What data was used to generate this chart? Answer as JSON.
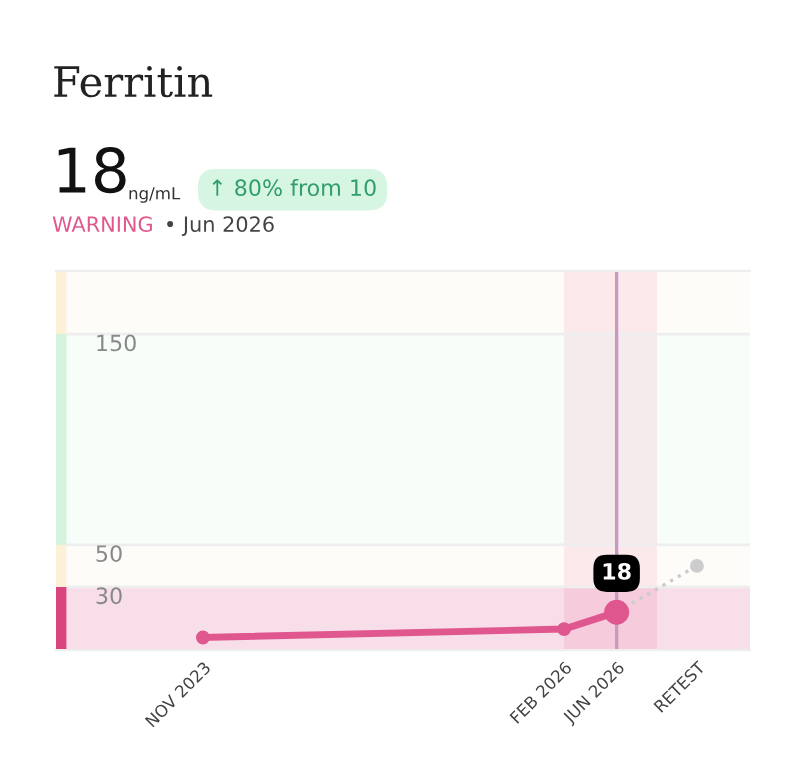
{
  "chart_data": {
    "type": "line",
    "title": "Ferritin",
    "annotations": [
      "18",
      "ng/mL",
      "↑ 80% from 10",
      "WARNING",
      "• Jun 2026"
    ],
    "x": [
      "2023-11",
      "2026-02",
      "2026-06"
    ],
    "series": [
      {
        "color": "#e0578f",
        "values": [
          6,
          10,
          18
        ],
        "value_labels": [
          null,
          null,
          "18"
        ],
        "marker": "circle",
        "line_style": "solid"
      },
      {
        "x": [
          "2026-06",
          "2026-12"
        ],
        "color": "#cccccc",
        "values": [
          18,
          40
        ],
        "marker": "circle",
        "line_style": "dotted"
      }
    ],
    "xlim": [
      "2022-12",
      "2027-04"
    ],
    "xticks": [
      {
        "value": "2023-11",
        "label": "NOV 2023"
      },
      {
        "value": "2026-02",
        "label": "FEB 2026"
      },
      {
        "value": "2026-06",
        "label": "JUN 2026"
      },
      {
        "value": "2026-12",
        "label": "RETEST"
      }
    ],
    "ylim": [
      0,
      180
    ],
    "yticks": [
      30,
      50,
      150
    ],
    "grid": "y",
    "legend": false,
    "ref_lines": [
      {
        "axis": "x",
        "value": "2026-06",
        "color": "#c79bc0"
      }
    ],
    "bands": [
      {
        "axis": "x",
        "from": "2026-02",
        "to": "2026-09",
        "color": "#fde8ef"
      },
      {
        "axis": "y",
        "from": 0,
        "to": 30,
        "color": "#d9467f"
      },
      {
        "axis": "y",
        "from": 30,
        "to": 50,
        "color": "#fbf1d6"
      },
      {
        "axis": "y",
        "from": 50,
        "to": 150,
        "color": "#d5f3dc"
      },
      {
        "axis": "y",
        "from": 150,
        "to": 180,
        "color": "#fbf1d6"
      }
    ]
  }
}
